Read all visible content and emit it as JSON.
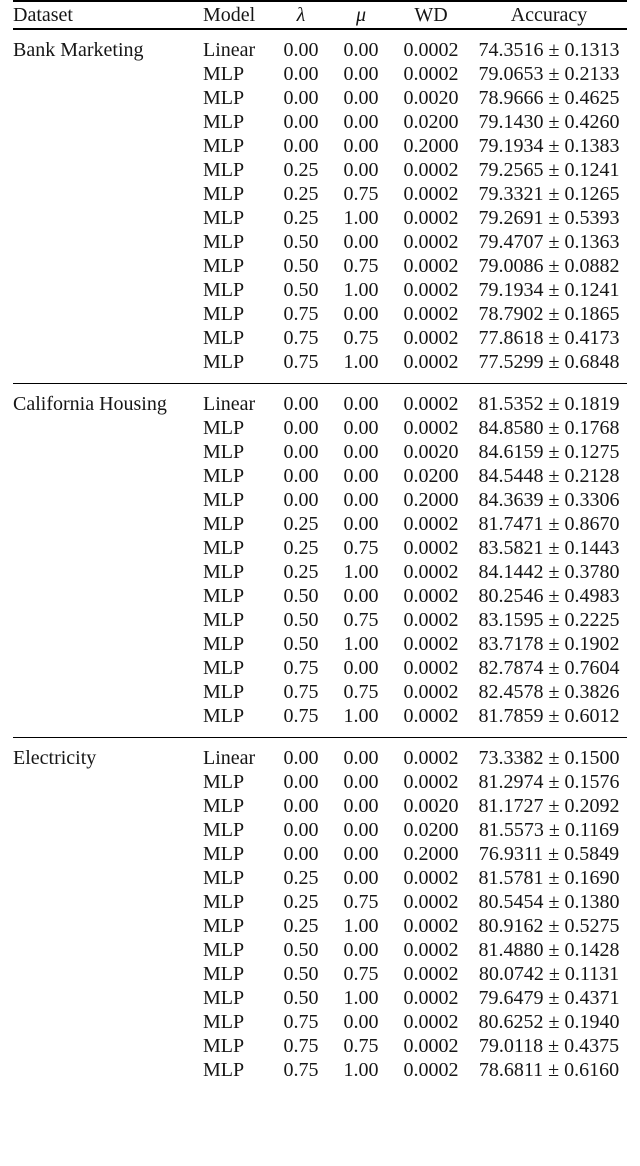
{
  "page": {
    "background": "#ffffff",
    "text_color": "#161616",
    "rule_color": "#000000"
  },
  "table": {
    "columns": [
      {
        "key": "dataset",
        "label": "Dataset"
      },
      {
        "key": "model",
        "label": "Model"
      },
      {
        "key": "lambda",
        "label": "λ"
      },
      {
        "key": "mu",
        "label": "μ"
      },
      {
        "key": "wd",
        "label": "WD"
      },
      {
        "key": "accuracy",
        "label": "Accuracy"
      }
    ],
    "plus_minus_symbol": "±",
    "sections": [
      {
        "dataset": "Bank Marketing",
        "rows": [
          {
            "model": "Linear",
            "lambda": "0.00",
            "mu": "0.00",
            "wd": "0.0002",
            "accuracy": "74.3516 ± 0.1313"
          },
          {
            "model": "MLP",
            "lambda": "0.00",
            "mu": "0.00",
            "wd": "0.0002",
            "accuracy": "79.0653 ± 0.2133"
          },
          {
            "model": "MLP",
            "lambda": "0.00",
            "mu": "0.00",
            "wd": "0.0020",
            "accuracy": "78.9666 ± 0.4625"
          },
          {
            "model": "MLP",
            "lambda": "0.00",
            "mu": "0.00",
            "wd": "0.0200",
            "accuracy": "79.1430 ± 0.4260"
          },
          {
            "model": "MLP",
            "lambda": "0.00",
            "mu": "0.00",
            "wd": "0.2000",
            "accuracy": "79.1934 ± 0.1383"
          },
          {
            "model": "MLP",
            "lambda": "0.25",
            "mu": "0.00",
            "wd": "0.0002",
            "accuracy": "79.2565 ± 0.1241"
          },
          {
            "model": "MLP",
            "lambda": "0.25",
            "mu": "0.75",
            "wd": "0.0002",
            "accuracy": "79.3321 ± 0.1265"
          },
          {
            "model": "MLP",
            "lambda": "0.25",
            "mu": "1.00",
            "wd": "0.0002",
            "accuracy": "79.2691 ± 0.5393"
          },
          {
            "model": "MLP",
            "lambda": "0.50",
            "mu": "0.00",
            "wd": "0.0002",
            "accuracy": "79.4707 ± 0.1363"
          },
          {
            "model": "MLP",
            "lambda": "0.50",
            "mu": "0.75",
            "wd": "0.0002",
            "accuracy": "79.0086 ± 0.0882"
          },
          {
            "model": "MLP",
            "lambda": "0.50",
            "mu": "1.00",
            "wd": "0.0002",
            "accuracy": "79.1934 ± 0.1241"
          },
          {
            "model": "MLP",
            "lambda": "0.75",
            "mu": "0.00",
            "wd": "0.0002",
            "accuracy": "78.7902 ± 0.1865"
          },
          {
            "model": "MLP",
            "lambda": "0.75",
            "mu": "0.75",
            "wd": "0.0002",
            "accuracy": "77.8618 ± 0.4173"
          },
          {
            "model": "MLP",
            "lambda": "0.75",
            "mu": "1.00",
            "wd": "0.0002",
            "accuracy": "77.5299 ± 0.6848"
          }
        ]
      },
      {
        "dataset": "California Housing",
        "rows": [
          {
            "model": "Linear",
            "lambda": "0.00",
            "mu": "0.00",
            "wd": "0.0002",
            "accuracy": "81.5352 ± 0.1819"
          },
          {
            "model": "MLP",
            "lambda": "0.00",
            "mu": "0.00",
            "wd": "0.0002",
            "accuracy": "84.8580 ± 0.1768"
          },
          {
            "model": "MLP",
            "lambda": "0.00",
            "mu": "0.00",
            "wd": "0.0020",
            "accuracy": "84.6159 ± 0.1275"
          },
          {
            "model": "MLP",
            "lambda": "0.00",
            "mu": "0.00",
            "wd": "0.0200",
            "accuracy": "84.5448 ± 0.2128"
          },
          {
            "model": "MLP",
            "lambda": "0.00",
            "mu": "0.00",
            "wd": "0.2000",
            "accuracy": "84.3639 ± 0.3306"
          },
          {
            "model": "MLP",
            "lambda": "0.25",
            "mu": "0.00",
            "wd": "0.0002",
            "accuracy": "81.7471 ± 0.8670"
          },
          {
            "model": "MLP",
            "lambda": "0.25",
            "mu": "0.75",
            "wd": "0.0002",
            "accuracy": "83.5821 ± 0.1443"
          },
          {
            "model": "MLP",
            "lambda": "0.25",
            "mu": "1.00",
            "wd": "0.0002",
            "accuracy": "84.1442 ± 0.3780"
          },
          {
            "model": "MLP",
            "lambda": "0.50",
            "mu": "0.00",
            "wd": "0.0002",
            "accuracy": "80.2546 ± 0.4983"
          },
          {
            "model": "MLP",
            "lambda": "0.50",
            "mu": "0.75",
            "wd": "0.0002",
            "accuracy": "83.1595 ± 0.2225"
          },
          {
            "model": "MLP",
            "lambda": "0.50",
            "mu": "1.00",
            "wd": "0.0002",
            "accuracy": "83.7178 ± 0.1902"
          },
          {
            "model": "MLP",
            "lambda": "0.75",
            "mu": "0.00",
            "wd": "0.0002",
            "accuracy": "82.7874 ± 0.7604"
          },
          {
            "model": "MLP",
            "lambda": "0.75",
            "mu": "0.75",
            "wd": "0.0002",
            "accuracy": "82.4578 ± 0.3826"
          },
          {
            "model": "MLP",
            "lambda": "0.75",
            "mu": "1.00",
            "wd": "0.0002",
            "accuracy": "81.7859 ± 0.6012"
          }
        ]
      },
      {
        "dataset": "Electricity",
        "rows": [
          {
            "model": "Linear",
            "lambda": "0.00",
            "mu": "0.00",
            "wd": "0.0002",
            "accuracy": "73.3382 ± 0.1500"
          },
          {
            "model": "MLP",
            "lambda": "0.00",
            "mu": "0.00",
            "wd": "0.0002",
            "accuracy": "81.2974 ± 0.1576"
          },
          {
            "model": "MLP",
            "lambda": "0.00",
            "mu": "0.00",
            "wd": "0.0020",
            "accuracy": "81.1727 ± 0.2092"
          },
          {
            "model": "MLP",
            "lambda": "0.00",
            "mu": "0.00",
            "wd": "0.0200",
            "accuracy": "81.5573 ± 0.1169"
          },
          {
            "model": "MLP",
            "lambda": "0.00",
            "mu": "0.00",
            "wd": "0.2000",
            "accuracy": "76.9311 ± 0.5849"
          },
          {
            "model": "MLP",
            "lambda": "0.25",
            "mu": "0.00",
            "wd": "0.0002",
            "accuracy": "81.5781 ± 0.1690"
          },
          {
            "model": "MLP",
            "lambda": "0.25",
            "mu": "0.75",
            "wd": "0.0002",
            "accuracy": "80.5454 ± 0.1380"
          },
          {
            "model": "MLP",
            "lambda": "0.25",
            "mu": "1.00",
            "wd": "0.0002",
            "accuracy": "80.9162 ± 0.5275"
          },
          {
            "model": "MLP",
            "lambda": "0.50",
            "mu": "0.00",
            "wd": "0.0002",
            "accuracy": "81.4880 ± 0.1428"
          },
          {
            "model": "MLP",
            "lambda": "0.50",
            "mu": "0.75",
            "wd": "0.0002",
            "accuracy": "80.0742 ± 0.1131"
          },
          {
            "model": "MLP",
            "lambda": "0.50",
            "mu": "1.00",
            "wd": "0.0002",
            "accuracy": "79.6479 ± 0.4371"
          },
          {
            "model": "MLP",
            "lambda": "0.75",
            "mu": "0.00",
            "wd": "0.0002",
            "accuracy": "80.6252 ± 0.1940"
          },
          {
            "model": "MLP",
            "lambda": "0.75",
            "mu": "0.75",
            "wd": "0.0002",
            "accuracy": "79.0118 ± 0.4375"
          },
          {
            "model": "MLP",
            "lambda": "0.75",
            "mu": "1.00",
            "wd": "0.0002",
            "accuracy": "78.6811 ± 0.6160"
          }
        ]
      }
    ]
  }
}
